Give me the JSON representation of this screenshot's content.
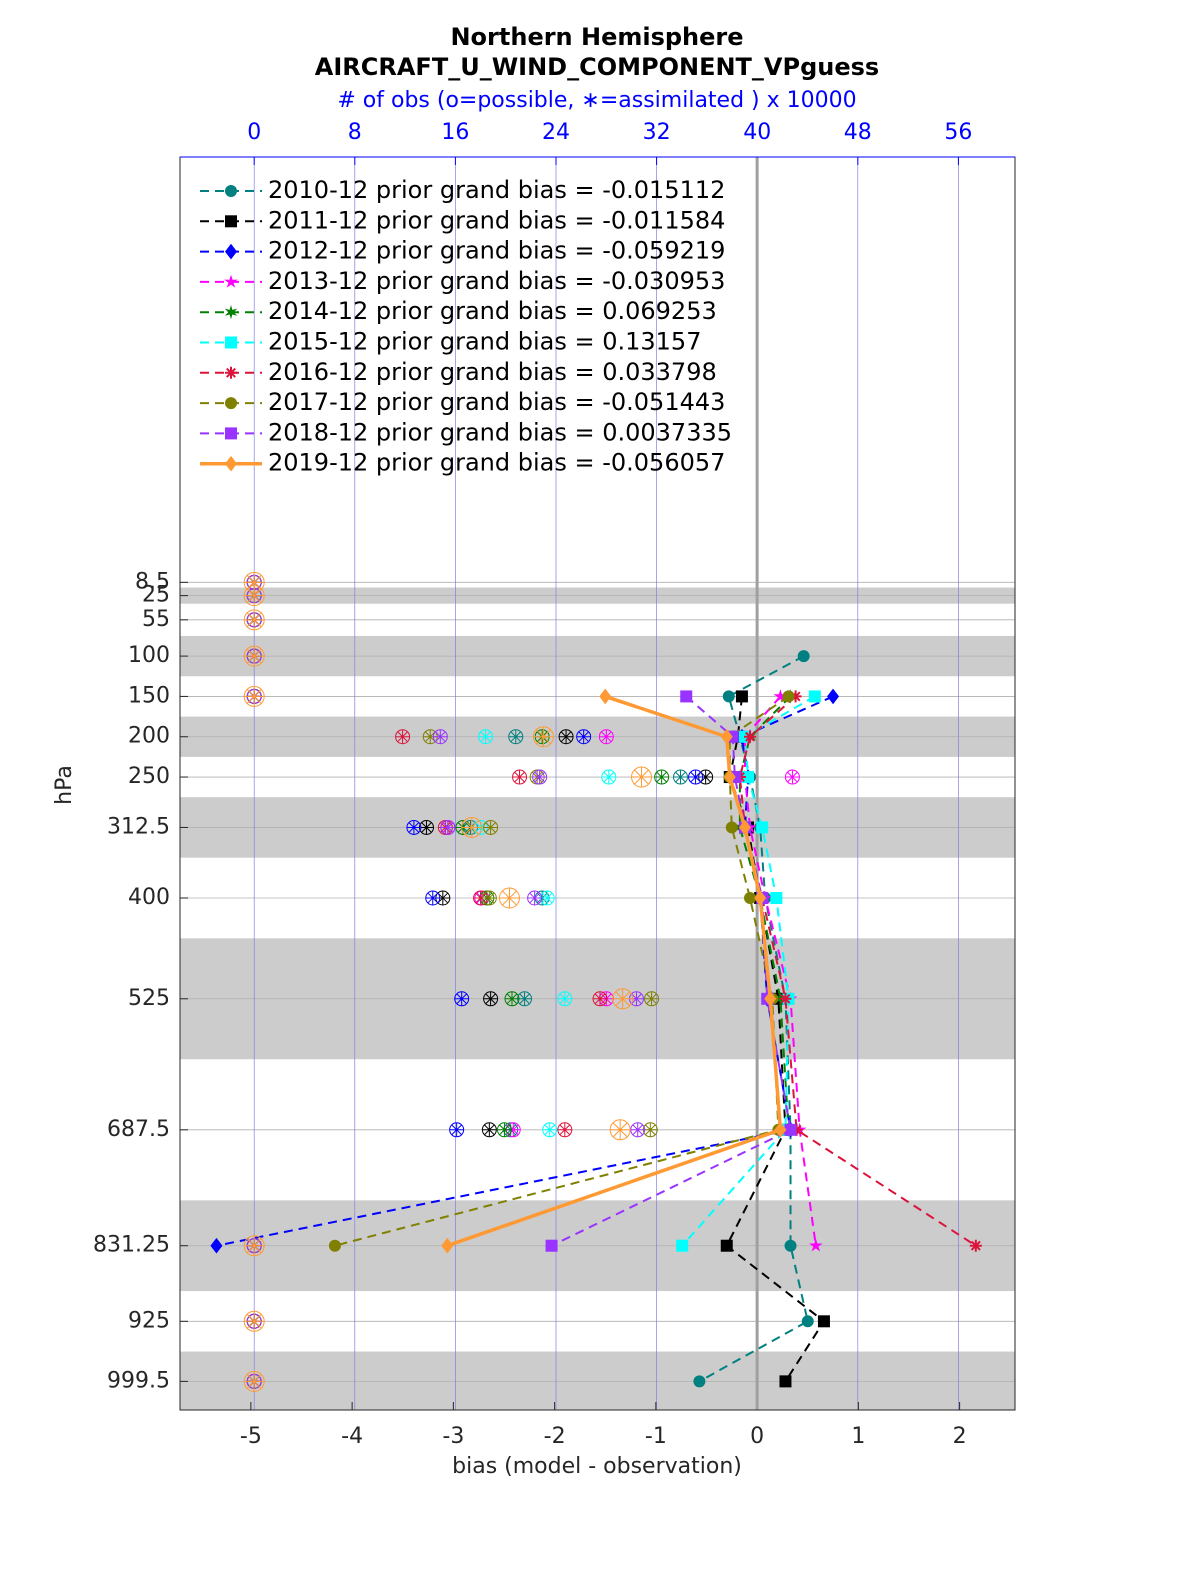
{
  "chart_data": {
    "type": "profile",
    "title": "Northern Hemisphere",
    "subtitle": "AIRCRAFT_U_WIND_COMPONENT_VPguess",
    "x2label": "# of obs (o=possible, ∗=assimilated ) x 10000",
    "xlabel": "bias (model - observation)",
    "ylabel": "hPa",
    "levels": [
      8.5,
      25,
      55,
      100,
      150,
      200,
      250,
      312.5,
      400,
      525,
      687.5,
      831.25,
      925,
      999.5
    ],
    "xlim": [
      -5.7,
      2.547
    ],
    "xticks": [
      -5,
      -4,
      -3,
      -2,
      -1,
      0,
      1,
      2
    ],
    "x2lim": [
      -5.9,
      60.5
    ],
    "x2ticks": [
      0,
      8,
      16,
      24,
      32,
      40,
      48,
      56
    ],
    "ylim": [
      -519,
      1035
    ],
    "y_reversed": true,
    "yticks": [
      8.5,
      25,
      55,
      100,
      150,
      200,
      250,
      312.5,
      400,
      525,
      687.5,
      831.25,
      925,
      999.5
    ],
    "shaded_layers": [
      [
        15,
        35
      ],
      [
        75,
        125
      ],
      [
        175,
        225
      ],
      [
        275,
        350
      ],
      [
        450,
        600
      ],
      [
        775,
        887.5
      ],
      [
        962.5,
        1035
      ]
    ],
    "grid": true,
    "zero_line": true,
    "legend": "upper-left",
    "series": [
      {
        "name": "2010-12 prior grand bias = -0.015112",
        "color": "#008080",
        "marker": "circle",
        "dashed": true,
        "values": [
          null,
          null,
          null,
          0.46,
          -0.28,
          -0.17,
          -0.07,
          0.03,
          0.08,
          0.28,
          0.33,
          0.33,
          0.5,
          -0.57
        ],
        "nobs": [
          0,
          0,
          0,
          0,
          0,
          20.8,
          33.9,
          17.2,
          22.9,
          21.5,
          20.4,
          0,
          0,
          0
        ]
      },
      {
        "name": "2011-12 prior grand bias = -0.011584",
        "color": "#000000",
        "marker": "square",
        "dashed": true,
        "values": [
          null,
          null,
          null,
          null,
          -0.15,
          -0.19,
          -0.27,
          -0.09,
          0.03,
          0.21,
          0.28,
          -0.3,
          0.66,
          0.28
        ],
        "nobs": [
          0,
          0,
          0,
          0,
          0,
          24.8,
          35.9,
          13.7,
          15.0,
          18.8,
          18.7,
          0,
          0,
          0
        ]
      },
      {
        "name": "2012-12 prior grand bias = -0.059219",
        "color": "#0000ff",
        "marker": "diamond",
        "dashed": true,
        "values": [
          null,
          null,
          null,
          null,
          0.75,
          -0.15,
          -0.09,
          -0.12,
          0.03,
          0.1,
          0.33,
          -5.34,
          null,
          null
        ],
        "nobs": [
          0,
          0,
          0,
          0,
          0,
          26.2,
          35.1,
          12.7,
          14.2,
          16.5,
          16.1,
          0,
          0,
          0
        ]
      },
      {
        "name": "2013-12 prior grand bias = -0.030953",
        "color": "#ff00ff",
        "marker": "star",
        "dashed": true,
        "values": [
          null,
          null,
          null,
          null,
          0.23,
          -0.12,
          -0.12,
          -0.07,
          0.08,
          0.33,
          0.42,
          0.58,
          null,
          null
        ],
        "nobs": [
          0,
          0,
          0,
          0,
          0,
          28.0,
          42.8,
          15.4,
          18.1,
          28.0,
          20.6,
          0,
          0,
          0
        ]
      },
      {
        "name": "2014-12 prior grand bias = 0.069253",
        "color": "#008000",
        "marker": "hexagram",
        "dashed": true,
        "values": [
          null,
          null,
          null,
          null,
          0.33,
          -0.07,
          -0.17,
          -0.17,
          0.03,
          0.23,
          0.31,
          null,
          null,
          null
        ],
        "nobs": [
          0,
          0,
          0,
          0,
          0,
          22.9,
          32.4,
          16.6,
          18.5,
          20.5,
          19.9,
          0,
          0,
          0
        ]
      },
      {
        "name": "2015-12 prior grand bias = 0.13157",
        "color": "#00ffff",
        "marker": "square",
        "dashed": true,
        "values": [
          null,
          null,
          null,
          null,
          0.57,
          -0.12,
          -0.09,
          0.05,
          0.19,
          0.31,
          0.28,
          -0.74,
          null,
          null
        ],
        "nobs": [
          0,
          0,
          0,
          0,
          0,
          18.4,
          28.2,
          18.0,
          23.3,
          24.7,
          23.5,
          0,
          0,
          0
        ]
      },
      {
        "name": "2016-12 prior grand bias = 0.033798",
        "color": "#dc143c",
        "marker": "asterisk",
        "dashed": true,
        "values": [
          null,
          null,
          null,
          null,
          0.38,
          -0.07,
          -0.17,
          -0.12,
          0.05,
          0.28,
          0.39,
          2.16,
          null,
          null
        ],
        "nobs": [
          0,
          0,
          0,
          0,
          0,
          11.8,
          21.1,
          15.2,
          18.0,
          27.5,
          24.7,
          0,
          0,
          0
        ]
      },
      {
        "name": "2017-12 prior grand bias = -0.051443",
        "color": "#808000",
        "marker": "circle",
        "dashed": true,
        "values": [
          null,
          null,
          null,
          null,
          0.31,
          -0.27,
          -0.27,
          -0.25,
          -0.07,
          0.15,
          0.21,
          -4.17,
          null,
          null
        ],
        "nobs": [
          0,
          0,
          0,
          0,
          0,
          14.0,
          22.5,
          18.8,
          18.7,
          31.6,
          31.5,
          0,
          0,
          0
        ]
      },
      {
        "name": "2018-12 prior grand bias = 0.0037335",
        "color": "#9933ff",
        "marker": "square",
        "dashed": true,
        "values": [
          null,
          null,
          null,
          null,
          -0.7,
          -0.24,
          -0.22,
          -0.12,
          0.05,
          0.1,
          0.33,
          -2.03,
          null,
          null
        ],
        "nobs": [
          0,
          0,
          0,
          0,
          0,
          14.8,
          22.7,
          15.4,
          22.3,
          30.4,
          30.5,
          0,
          0,
          0
        ]
      },
      {
        "name": "2019-12 prior grand bias = -0.056057",
        "color": "#ff9933",
        "marker": "diamond",
        "dashed": false,
        "bold": true,
        "values": [
          null,
          null,
          null,
          null,
          -1.5,
          -0.3,
          -0.27,
          -0.12,
          0.03,
          0.13,
          0.23,
          -3.06,
          null,
          null
        ],
        "nobs": [
          0,
          0,
          0,
          0,
          0,
          23.0,
          30.8,
          17.3,
          20.3,
          29.3,
          29.1,
          0,
          0,
          0
        ]
      }
    ]
  }
}
